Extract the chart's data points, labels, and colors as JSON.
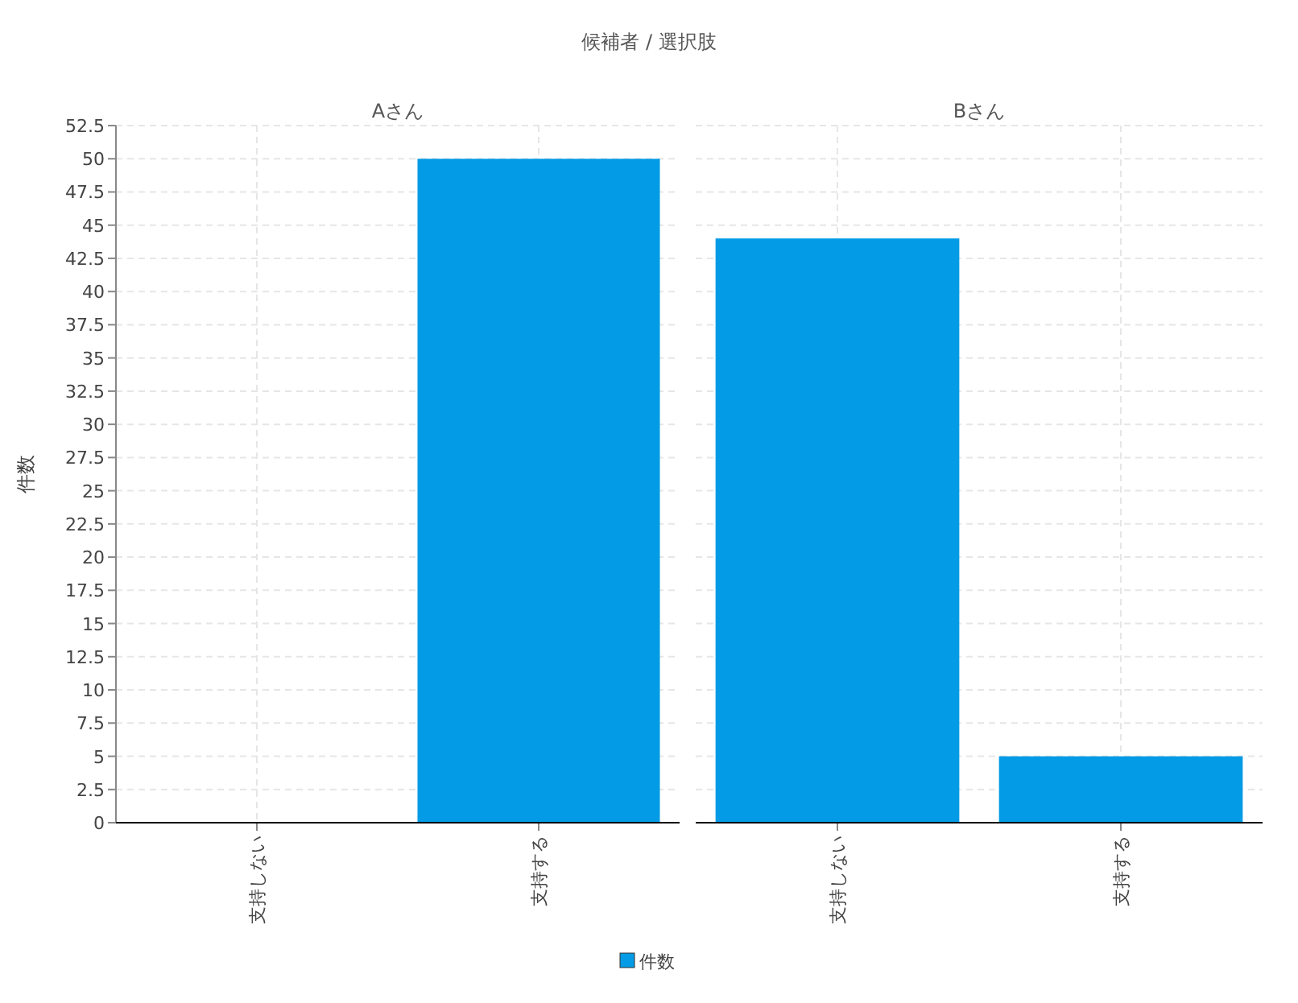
{
  "chart_data": [
    {
      "type": "bar",
      "title": "Aさん",
      "ylabel": "件数",
      "annotations": [
        "候補者 / 選択肢"
      ],
      "categories": [
        "支持しない",
        "支持する"
      ],
      "series": [
        {
          "name": "件数",
          "color": "#039be5",
          "values": [
            0,
            50
          ]
        }
      ],
      "ylim": [
        0,
        52.5
      ],
      "yticks": [
        0,
        2.5,
        5,
        7.5,
        10,
        12.5,
        15,
        17.5,
        20,
        22.5,
        25,
        27.5,
        30,
        32.5,
        35,
        37.5,
        40,
        42.5,
        45,
        47.5,
        50,
        52.5
      ],
      "grid": true,
      "legend": "bottom"
    },
    {
      "type": "bar",
      "title": "Bさん",
      "categories": [
        "支持しない",
        "支持する"
      ],
      "series": [
        {
          "color": "#039be5",
          "values": [
            44,
            5
          ]
        }
      ],
      "ylim": [
        0,
        52.5
      ],
      "yticks": [
        0,
        2.5,
        5,
        7.5,
        10,
        12.5,
        15,
        17.5,
        20,
        22.5,
        25,
        27.5,
        30,
        32.5,
        35,
        37.5,
        40,
        42.5,
        45,
        47.5,
        50,
        52.5
      ],
      "grid": true,
      "tick_labels": "x"
    }
  ]
}
